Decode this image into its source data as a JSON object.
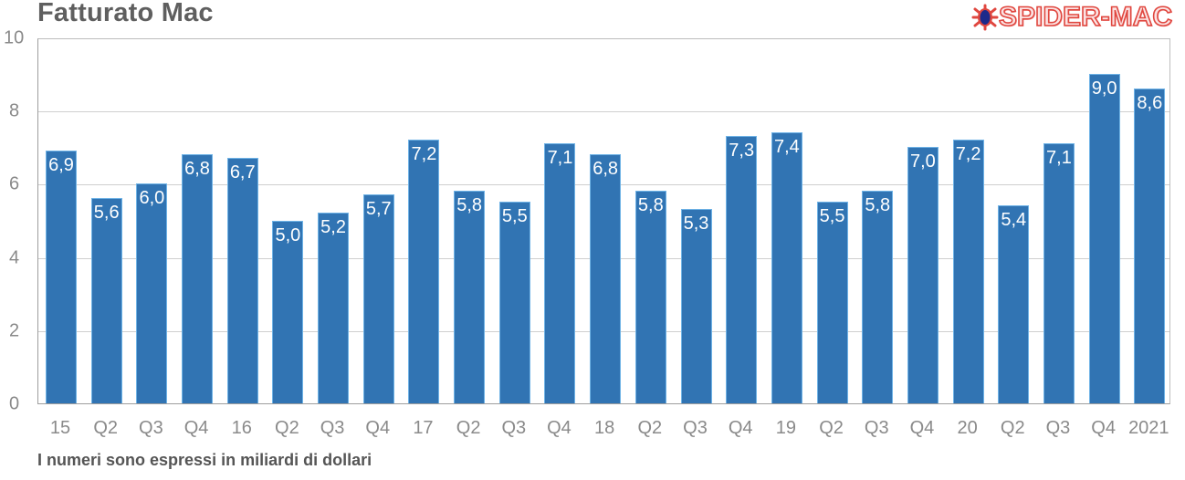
{
  "header": {
    "title": "Fatturato Mac",
    "logo_text": "SPIDER-MAC",
    "logo_icon": "spider-bug-icon"
  },
  "footer": {
    "note": "I numeri sono espressi in miliardi di dollari"
  },
  "colors": {
    "bar_fill": "#3174b3",
    "bar_border": "#6fb3e6",
    "title": "#5f5f5f",
    "logo": "#e0473f"
  },
  "chart_data": {
    "type": "bar",
    "title": "Fatturato Mac",
    "xlabel": "",
    "ylabel": "",
    "ylim": [
      0,
      10
    ],
    "yticks": [
      0,
      2,
      4,
      6,
      8,
      10
    ],
    "grid": true,
    "legend": null,
    "categories": [
      "15",
      "Q2",
      "Q3",
      "Q4",
      "16",
      "Q2",
      "Q3",
      "Q4",
      "17",
      "Q2",
      "Q3",
      "Q4",
      "18",
      "Q2",
      "Q3",
      "Q4",
      "19",
      "Q2",
      "Q3",
      "Q4",
      "20",
      "Q2",
      "Q3",
      "Q4",
      "2021"
    ],
    "values": [
      6.9,
      5.6,
      6.0,
      6.8,
      6.7,
      5.0,
      5.2,
      5.7,
      7.2,
      5.8,
      5.5,
      7.1,
      6.8,
      5.8,
      5.3,
      7.3,
      7.4,
      5.5,
      5.8,
      7.0,
      7.2,
      5.4,
      7.1,
      9.0,
      8.6
    ],
    "value_labels": [
      "6,9",
      "5,6",
      "6,0",
      "6,8",
      "6,7",
      "5,0",
      "5,2",
      "5,7",
      "7,2",
      "5,8",
      "5,5",
      "7,1",
      "6,8",
      "5,8",
      "5,3",
      "7,3",
      "7,4",
      "5,5",
      "5,8",
      "7,0",
      "7,2",
      "5,4",
      "7,1",
      "9,0",
      "8,6"
    ],
    "annotation": "I numeri sono espressi in miliardi di dollari",
    "units": "miliardi di dollari"
  }
}
